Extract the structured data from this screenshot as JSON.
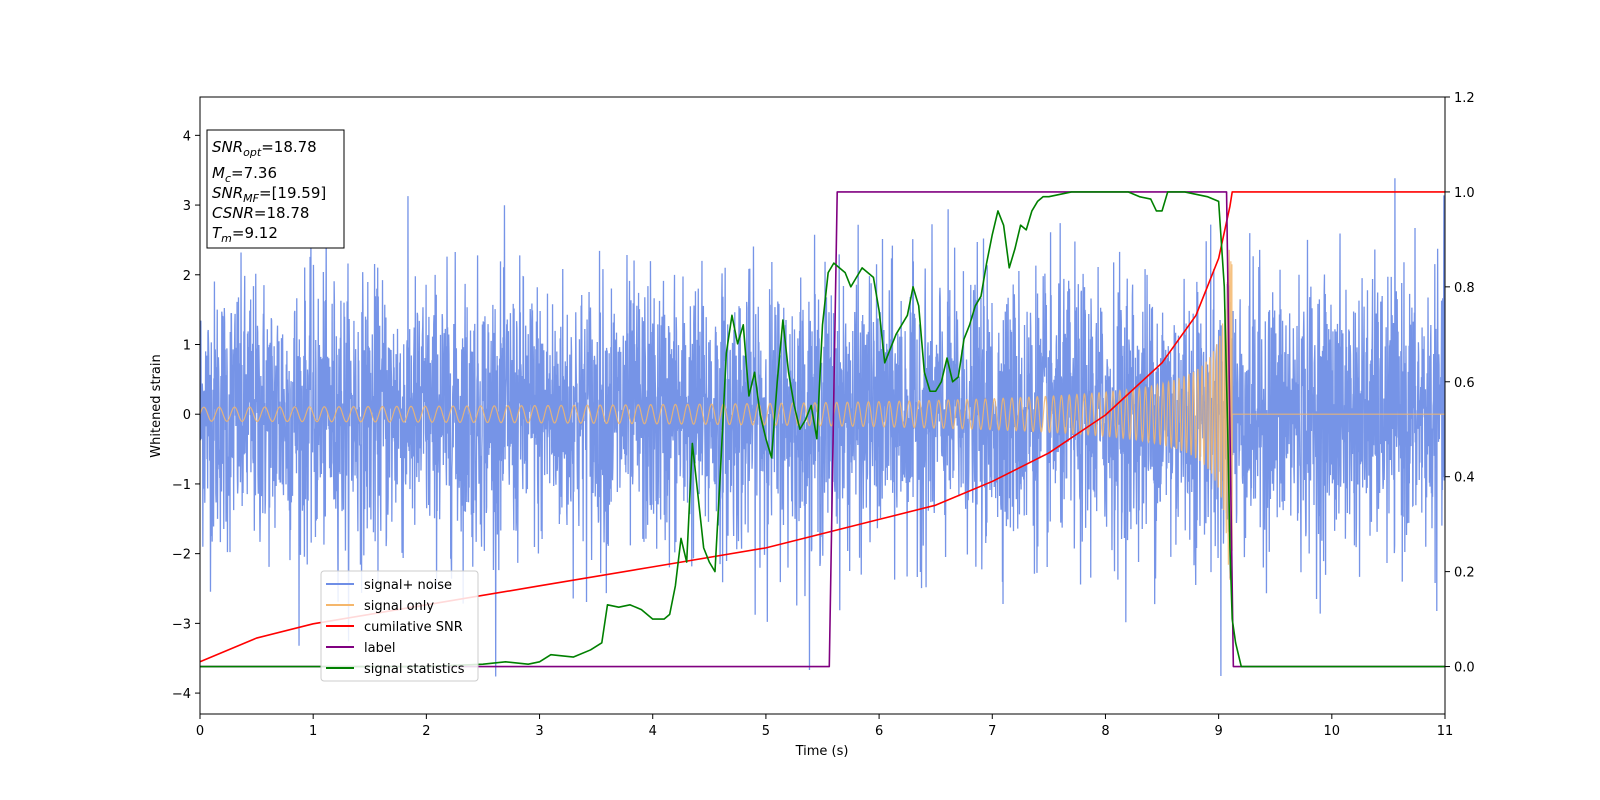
{
  "chart_data": {
    "type": "line",
    "title": "",
    "xlabel": "Time (s)",
    "ylabel": "Whitened strain",
    "ylabel_right": "",
    "xlim": [
      0,
      11
    ],
    "ylim": [
      -4.3,
      4.55
    ],
    "ylim_right": [
      -0.1,
      1.2
    ],
    "x_ticks": [
      0,
      1,
      2,
      3,
      4,
      5,
      6,
      7,
      8,
      9,
      10,
      11
    ],
    "y_ticks": [
      -4,
      -3,
      -2,
      -1,
      0,
      1,
      2,
      3,
      4
    ],
    "y_ticks_right": [
      "0.0",
      "0.2",
      "0.4",
      "0.6",
      "0.8",
      "1.0",
      "1.2"
    ],
    "grid": false,
    "legend_position": "lower-left",
    "info_box": {
      "snr_opt_base": "SNR",
      "snr_opt_sub": "opt",
      "snr_opt_value": "=18.78",
      "mc_base": "M",
      "mc_sub": "c",
      "mc_value": "=7.36",
      "snr_mf_base": "SNR",
      "snr_mf_sub": "MF",
      "snr_mf_value": "=[19.59]",
      "csnr_base": "CSNR",
      "csnr_value": "=18.78",
      "tm_base": "T",
      "tm_sub": "m",
      "tm_value": "=9.12"
    },
    "series": [
      {
        "name": "signal+ noise",
        "axis": "left",
        "color": "#6f8ee6",
        "description": "Gaussian noise around 0 with amplitude ~±2.5 (peaks to ~±4.2) plus signal; dense, ~4400 samples from 0 to 11 s"
      },
      {
        "name": "signal only",
        "axis": "left",
        "color": "#f5b76c",
        "chirp": {
          "t_merge": 9.12,
          "amp_start": 0.1,
          "amp_end": 2.4,
          "ends_flat_at": 0
        }
      },
      {
        "name": "cumilative SNR",
        "axis": "right",
        "color": "#ff0000",
        "x": [
          0,
          0.5,
          1,
          2,
          3,
          4,
          5,
          6,
          6.5,
          7,
          7.5,
          8,
          8.5,
          8.8,
          9,
          9.1,
          9.12,
          11
        ],
        "y": [
          0.01,
          0.06,
          0.09,
          0.13,
          0.17,
          0.21,
          0.25,
          0.31,
          0.34,
          0.39,
          0.45,
          0.53,
          0.64,
          0.74,
          0.86,
          0.97,
          1.0,
          1.0
        ]
      },
      {
        "name": "label",
        "axis": "right",
        "color": "#800080",
        "x": [
          0,
          5.56,
          5.63,
          9.07,
          9.13,
          11
        ],
        "y": [
          0,
          0,
          1,
          1,
          0,
          0
        ]
      },
      {
        "name": "signal statistics",
        "axis": "right",
        "color": "#008000",
        "x": [
          0,
          0.5,
          1,
          1.5,
          2,
          2.5,
          2.7,
          2.9,
          3.0,
          3.1,
          3.3,
          3.45,
          3.55,
          3.6,
          3.7,
          3.8,
          3.9,
          4.0,
          4.1,
          4.15,
          4.2,
          4.25,
          4.3,
          4.35,
          4.4,
          4.45,
          4.5,
          4.55,
          4.6,
          4.65,
          4.7,
          4.75,
          4.8,
          4.85,
          4.9,
          4.95,
          5.0,
          5.05,
          5.1,
          5.15,
          5.2,
          5.25,
          5.3,
          5.35,
          5.4,
          5.45,
          5.5,
          5.55,
          5.6,
          5.65,
          5.7,
          5.75,
          5.8,
          5.85,
          5.9,
          5.95,
          6.0,
          6.05,
          6.1,
          6.15,
          6.2,
          6.25,
          6.3,
          6.35,
          6.4,
          6.45,
          6.5,
          6.55,
          6.6,
          6.65,
          6.7,
          6.75,
          6.8,
          6.85,
          6.9,
          6.95,
          7.0,
          7.05,
          7.1,
          7.15,
          7.2,
          7.25,
          7.3,
          7.35,
          7.4,
          7.45,
          7.5,
          7.6,
          7.7,
          7.8,
          7.9,
          8.0,
          8.1,
          8.2,
          8.3,
          8.4,
          8.45,
          8.5,
          8.55,
          8.6,
          8.7,
          8.8,
          8.9,
          9.0,
          9.05,
          9.08,
          9.1,
          9.12,
          9.15,
          9.2,
          9.3,
          11
        ],
        "y": [
          0,
          0.0,
          0.0,
          0.0,
          0.0,
          0.005,
          0.01,
          0.005,
          0.01,
          0.025,
          0.02,
          0.035,
          0.05,
          0.13,
          0.125,
          0.13,
          0.12,
          0.1,
          0.1,
          0.11,
          0.17,
          0.27,
          0.22,
          0.47,
          0.36,
          0.25,
          0.22,
          0.2,
          0.42,
          0.66,
          0.74,
          0.68,
          0.72,
          0.57,
          0.62,
          0.53,
          0.48,
          0.44,
          0.6,
          0.73,
          0.62,
          0.55,
          0.5,
          0.52,
          0.55,
          0.48,
          0.72,
          0.83,
          0.85,
          0.84,
          0.83,
          0.8,
          0.82,
          0.84,
          0.83,
          0.82,
          0.75,
          0.64,
          0.67,
          0.7,
          0.72,
          0.74,
          0.8,
          0.76,
          0.62,
          0.58,
          0.58,
          0.6,
          0.65,
          0.6,
          0.61,
          0.69,
          0.72,
          0.76,
          0.78,
          0.85,
          0.91,
          0.96,
          0.93,
          0.84,
          0.88,
          0.93,
          0.92,
          0.96,
          0.98,
          0.99,
          0.99,
          0.995,
          1.0,
          1.0,
          1.0,
          1.0,
          1.0,
          1.0,
          0.99,
          0.985,
          0.96,
          0.96,
          1.0,
          1.0,
          1.0,
          0.995,
          0.99,
          0.98,
          0.8,
          0.5,
          0.25,
          0.1,
          0.05,
          0.0,
          0.0,
          0.0
        ]
      }
    ]
  }
}
